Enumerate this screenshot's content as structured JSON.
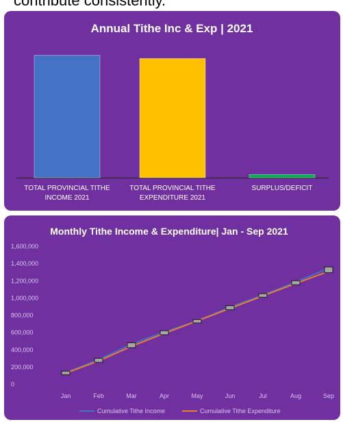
{
  "header_snippet": "contribute consistently.",
  "chart_data": [
    {
      "type": "bar",
      "title": "Annual Tithe Inc & Exp | 2021",
      "categories": [
        [
          "TOTAL PROVINCIAL TITHE",
          "INCOME 2021"
        ],
        [
          "TOTAL PROVINCIAL TITHE",
          "EXPENDITURE 2021"
        ],
        [
          "SURPLUS/DEFICIT"
        ]
      ],
      "values": [
        1340000,
        1305000,
        35000
      ],
      "colors": [
        "#4472c4",
        "#ffc000",
        "#00b050"
      ],
      "ylim": [
        0,
        1600000
      ],
      "grid": false,
      "legend": "none"
    },
    {
      "type": "line",
      "title": "Monthly Tithe Income & Expenditure| Jan - Sep 2021",
      "x": [
        "Jan",
        "Feb",
        "Mar",
        "Apr",
        "May",
        "Jun",
        "Jul",
        "Aug",
        "Sep"
      ],
      "y_ticks": [
        "0",
        "200,000",
        "400,000",
        "600,000",
        "800,000",
        "1,000,000",
        "1,200,000",
        "1,400,000",
        "1,600,000"
      ],
      "ylim": [
        0,
        1600000
      ],
      "series": [
        {
          "name": "Cumulative Tithe Income",
          "color": "#4472c4",
          "values": [
            135000,
            285000,
            465000,
            605000,
            735000,
            895000,
            1035000,
            1185000,
            1345000
          ]
        },
        {
          "name": "Cumulative Tithe Expenditure",
          "color": "#ed7d31",
          "values": [
            130000,
            270000,
            440000,
            590000,
            735000,
            880000,
            1025000,
            1170000,
            1310000
          ]
        }
      ],
      "grid": false,
      "legend": "bottom"
    }
  ]
}
